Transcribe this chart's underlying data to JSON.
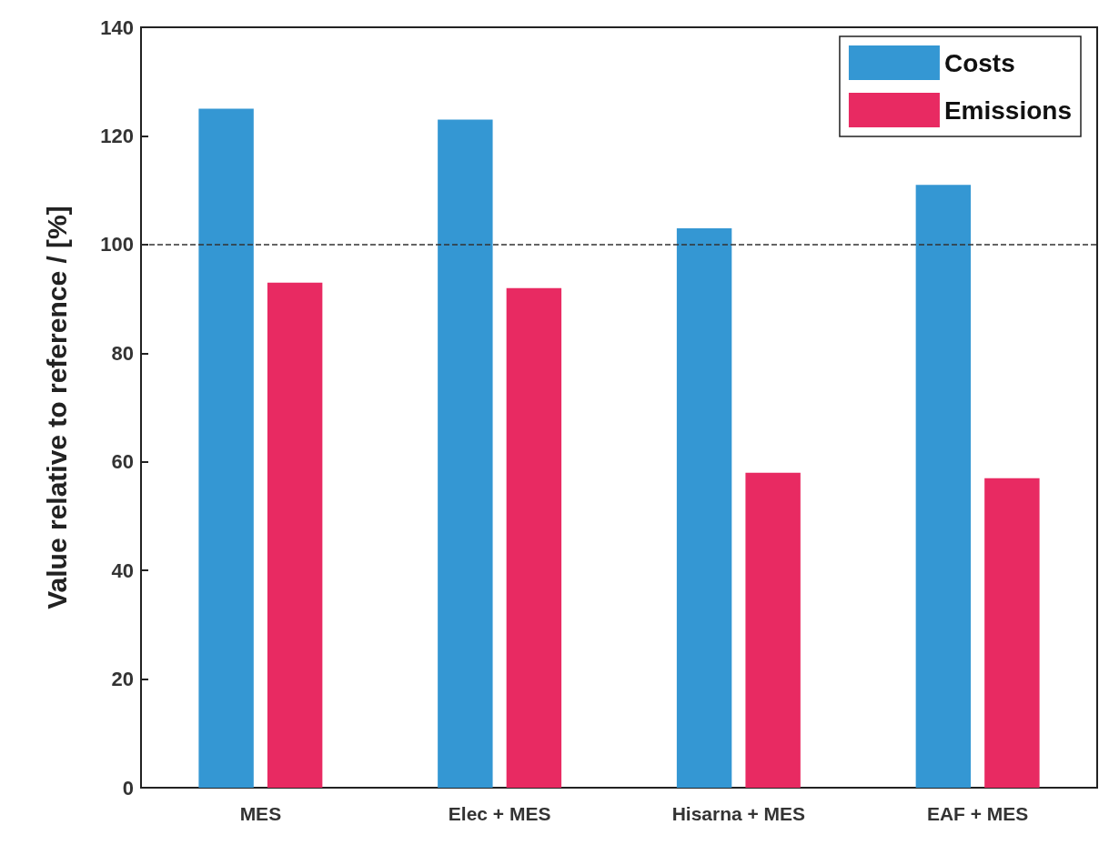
{
  "chart_data": {
    "type": "bar",
    "ylabel": "Value relative to reference / [%]",
    "categories": [
      "MES",
      "Elec + MES",
      "Hisarna + MES",
      "EAF + MES"
    ],
    "series": [
      {
        "name": "Costs",
        "color": "#3497d3",
        "values": [
          125,
          123,
          103,
          111
        ]
      },
      {
        "name": "Emissions",
        "color": "#e82a62",
        "values": [
          93,
          92,
          58,
          57
        ]
      }
    ],
    "ylim": [
      0,
      140
    ],
    "yticks": [
      0,
      20,
      40,
      60,
      80,
      100,
      120,
      140
    ],
    "grid": false,
    "legend": "top right",
    "ref_lines": [
      {
        "axis": "y",
        "value": 100,
        "color": "#333333",
        "line_style": "dashed"
      }
    ]
  }
}
